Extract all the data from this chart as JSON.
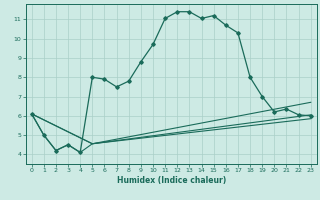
{
  "xlabel": "Humidex (Indice chaleur)",
  "bg_color": "#cdeae4",
  "grid_color": "#aacfc8",
  "line_color": "#1a6b5a",
  "xlim": [
    -0.5,
    23.5
  ],
  "ylim": [
    3.5,
    11.8
  ],
  "yticks": [
    4,
    5,
    6,
    7,
    8,
    9,
    10,
    11
  ],
  "xticks": [
    0,
    1,
    2,
    3,
    4,
    5,
    6,
    7,
    8,
    9,
    10,
    11,
    12,
    13,
    14,
    15,
    16,
    17,
    18,
    19,
    20,
    21,
    22,
    23
  ],
  "curve1_x": [
    0,
    1,
    2,
    3,
    4,
    5,
    6,
    7,
    8,
    9,
    10,
    11,
    12,
    13,
    14,
    15,
    16,
    17,
    18,
    19,
    20,
    21,
    22,
    23
  ],
  "curve1_y": [
    6.1,
    5.0,
    4.2,
    4.5,
    4.1,
    8.0,
    7.9,
    7.5,
    7.8,
    8.8,
    9.7,
    11.05,
    11.4,
    11.4,
    11.05,
    11.2,
    10.7,
    10.3,
    8.0,
    7.0,
    6.2,
    6.35,
    6.05,
    6.0
  ],
  "curve2_x": [
    0,
    1,
    2,
    3,
    4,
    5,
    23
  ],
  "curve2_y": [
    6.1,
    5.0,
    4.2,
    4.5,
    4.1,
    4.55,
    6.05
  ],
  "curve3_x": [
    0,
    5,
    23
  ],
  "curve3_y": [
    6.1,
    4.55,
    6.7
  ],
  "curve4_x": [
    0,
    5,
    23
  ],
  "curve4_y": [
    6.1,
    4.55,
    5.85
  ]
}
